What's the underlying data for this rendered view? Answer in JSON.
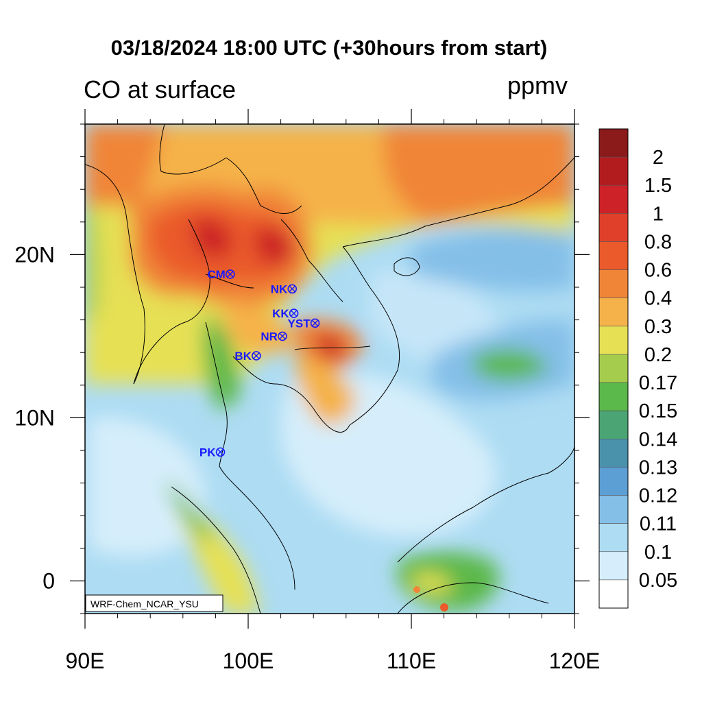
{
  "header": {
    "title": "03/18/2024 18:00 UTC (+30hours from start)",
    "field_label": "CO at surface",
    "units": "ppmv"
  },
  "map": {
    "credit": "WRF-Chem_NCAR_YSU",
    "lon_range": [
      90,
      120
    ],
    "lat_range": [
      -2,
      28
    ],
    "x_ticks": [
      {
        "value": 90,
        "label": "90E"
      },
      {
        "value": 100,
        "label": "100E"
      },
      {
        "value": 110,
        "label": "110E"
      },
      {
        "value": 120,
        "label": "120E"
      }
    ],
    "y_ticks": [
      {
        "value": 20,
        "label": "20N"
      },
      {
        "value": 10,
        "label": "10N"
      },
      {
        "value": 0,
        "label": "0"
      }
    ],
    "stations": [
      {
        "code": "CM",
        "lon": 98.9,
        "lat": 18.8
      },
      {
        "code": "NK",
        "lon": 102.7,
        "lat": 17.9
      },
      {
        "code": "KK",
        "lon": 102.8,
        "lat": 16.4
      },
      {
        "code": "YST",
        "lon": 104.1,
        "lat": 15.8
      },
      {
        "code": "NR",
        "lon": 102.1,
        "lat": 15.0
      },
      {
        "code": "BK",
        "lon": 100.5,
        "lat": 13.8
      },
      {
        "code": "PK",
        "lon": 98.3,
        "lat": 7.9
      }
    ],
    "station_color": "#1a1aff"
  },
  "colorbar": {
    "labels": [
      "2",
      "1.5",
      "1",
      "0.8",
      "0.6",
      "0.4",
      "0.3",
      "0.2",
      "0.17",
      "0.15",
      "0.14",
      "0.13",
      "0.12",
      "0.11",
      "0.1",
      "0.05"
    ],
    "colors": [
      "#8b1a1a",
      "#b31c1f",
      "#cc2228",
      "#e0402a",
      "#ea5a2a",
      "#f08538",
      "#f5b24a",
      "#e6e055",
      "#a6cc4e",
      "#5bb84a",
      "#4aa474",
      "#4a92ac",
      "#5b9fd5",
      "#84bfe8",
      "#addcf3",
      "#d6eefb",
      "#ffffff"
    ]
  }
}
